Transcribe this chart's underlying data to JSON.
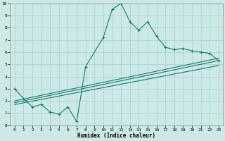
{
  "xlabel": "Humidex (Indice chaleur)",
  "bg_color": "#cce9e7",
  "grid_color": "#aad4d1",
  "line_color": "#1a7a6e",
  "xlim": [
    -0.5,
    23.5
  ],
  "ylim": [
    0,
    10
  ],
  "xticks": [
    0,
    1,
    2,
    3,
    4,
    5,
    6,
    7,
    8,
    9,
    10,
    11,
    12,
    13,
    14,
    15,
    16,
    17,
    18,
    19,
    20,
    21,
    22,
    23
  ],
  "yticks": [
    0,
    1,
    2,
    3,
    4,
    5,
    6,
    7,
    8,
    9,
    10
  ],
  "main_x": [
    0,
    1,
    2,
    3,
    4,
    5,
    6,
    7,
    8,
    10,
    11,
    12,
    13,
    14,
    15,
    16,
    17,
    18,
    19,
    20,
    21,
    22,
    23
  ],
  "main_y": [
    3.0,
    2.2,
    1.5,
    1.7,
    1.1,
    0.9,
    1.5,
    0.3,
    4.8,
    7.2,
    9.5,
    10.0,
    8.5,
    7.8,
    8.5,
    7.3,
    6.4,
    6.2,
    6.3,
    6.1,
    6.0,
    5.9,
    5.3
  ],
  "line2_x": [
    0,
    23
  ],
  "line2_y": [
    1.85,
    5.3
  ],
  "line3_x": [
    0,
    23
  ],
  "line3_y": [
    2.0,
    5.5
  ],
  "line4_x": [
    0,
    23
  ],
  "line4_y": [
    1.7,
    4.9
  ]
}
